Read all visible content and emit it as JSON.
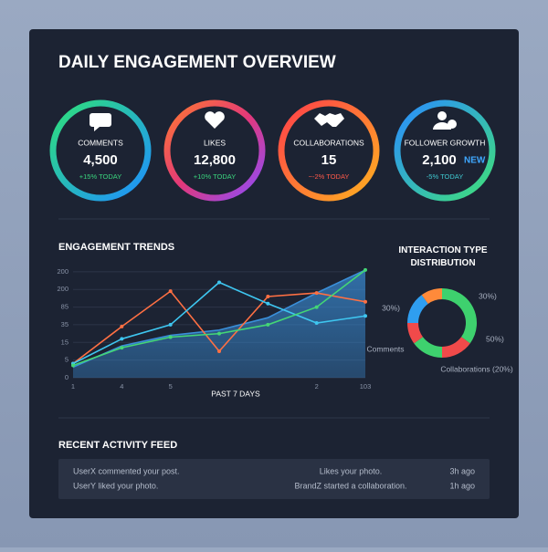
{
  "header": {
    "title": "DAILY ENGAGEMENT OVERVIEW"
  },
  "kpis": [
    {
      "label": "COMMENTS",
      "value": "4,500",
      "change": "+15% TODAY",
      "change_color": "#3ad67e",
      "ring_colors": [
        "#2fe07a",
        "#1e8fff"
      ]
    },
    {
      "label": "LIKES",
      "value": "12,800",
      "change": "+10% TODAY",
      "change_color": "#3ad67e",
      "ring_colors": [
        "#ff7a2f",
        "#e2387a",
        "#8a4dff"
      ]
    },
    {
      "label": "COLLABORATIONS",
      "value": "15",
      "change": "−-2% TODAY",
      "change_color": "#ff5a4a",
      "ring_colors": [
        "#ff3f4a",
        "#ffb020"
      ]
    },
    {
      "label": "FOLLOWER GROWTH",
      "value": "2,100",
      "badge": "NEW",
      "change": "-5% TODAY",
      "change_color": "#3fc9d0",
      "ring_colors": [
        "#2a8cff",
        "#3fe07a"
      ]
    }
  ],
  "trends": {
    "type": "line",
    "title": "ENGAGEMENT TRENDS",
    "x_label": "PAST 7 DAYS",
    "categories": [
      "1",
      "4",
      "5",
      null,
      null,
      "2",
      "103"
    ],
    "ylim": [
      0,
      6.2
    ],
    "yticks": [
      {
        "value": 0,
        "label": "0"
      },
      {
        "value": 1,
        "label": "5"
      },
      {
        "value": 2,
        "label": "15"
      },
      {
        "value": 3,
        "label": "35"
      },
      {
        "value": 4,
        "label": "85"
      },
      {
        "value": 5,
        "label": "200"
      },
      {
        "value": 6,
        "label": "200"
      }
    ],
    "grid": true,
    "series": [
      {
        "color": "#3a8fd9",
        "fill": true,
        "values": [
          0.6,
          1.8,
          2.4,
          2.7,
          3.4,
          4.8,
          6.1
        ]
      },
      {
        "color": "#ff7043",
        "values": [
          0.8,
          2.9,
          4.9,
          1.5,
          4.6,
          4.8,
          4.3
        ]
      },
      {
        "color": "#3ec6f0",
        "values": [
          0.8,
          2.2,
          3.0,
          5.4,
          4.2,
          3.1,
          3.5
        ]
      },
      {
        "color": "#44d676",
        "values": [
          0.7,
          1.7,
          2.3,
          2.5,
          3.0,
          4.0,
          6.1
        ]
      }
    ]
  },
  "distribution": {
    "type": "pie",
    "title": "INTERACTION TYPE DISTRIBUTION",
    "values": [
      35,
      15,
      15,
      10,
      15,
      10
    ],
    "colors": [
      "#3ed16e",
      "#f04a4a",
      "#3ed16e",
      "#f04a4a",
      "#2f9ef0",
      "#ff8a3a"
    ],
    "annotations": [
      "30%)",
      "30%)",
      "50%)",
      "Comments",
      "Collaborations (20%)"
    ]
  },
  "feed": {
    "title": "RECENT ACTIVITY FEED",
    "rows": [
      [
        "UserX commented your post.",
        "Likes your photo.",
        "3h ago"
      ],
      [
        "UserY liked your photo.",
        "BrandZ started a collaboration.",
        "1h ago"
      ]
    ]
  }
}
